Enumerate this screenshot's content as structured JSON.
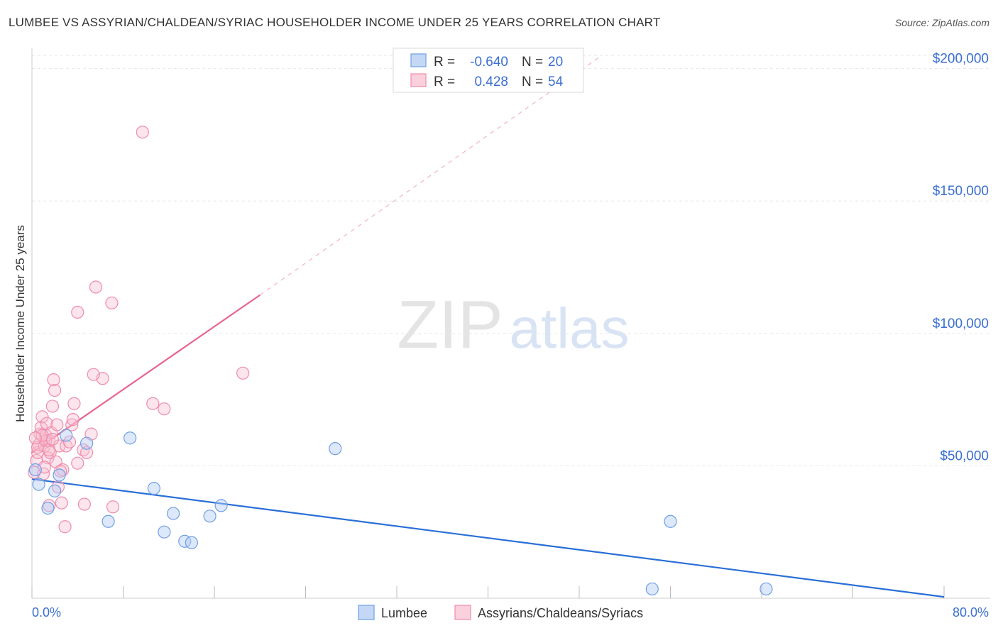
{
  "title": "LUMBEE VS ASSYRIAN/CHALDEAN/SYRIAC HOUSEHOLDER INCOME UNDER 25 YEARS CORRELATION CHART",
  "source": "Source: ZipAtlas.com",
  "watermark": {
    "zip": "ZIP",
    "atlas": "atlas"
  },
  "chart_data": {
    "type": "scatter",
    "title": "LUMBEE VS ASSYRIAN/CHALDEAN/SYRIAC HOUSEHOLDER INCOME UNDER 25 YEARS CORRELATION CHART",
    "xlabel": "",
    "ylabel": "Householder Income Under 25 years",
    "xlim": [
      0,
      80
    ],
    "ylim": [
      0,
      205000
    ],
    "x_tick_labels": [
      "0.0%",
      "80.0%"
    ],
    "y_ticks": [
      50000,
      100000,
      150000,
      200000
    ],
    "y_tick_labels": [
      "$50,000",
      "$100,000",
      "$150,000",
      "$200,000"
    ],
    "grid": true,
    "legend_position": "bottom-center",
    "series": [
      {
        "name": "Lumbee",
        "color": "#6f9fe6",
        "line_color": "#2a6fd6",
        "R": "-0.640",
        "N": "20",
        "trend": {
          "x": [
            0,
            80
          ],
          "y": [
            45000,
            500
          ]
        },
        "points": [
          [
            0.3,
            48500
          ],
          [
            0.6,
            43000
          ],
          [
            1.4,
            34000
          ],
          [
            2.0,
            40500
          ],
          [
            2.4,
            46500
          ],
          [
            3.0,
            61500
          ],
          [
            4.8,
            58500
          ],
          [
            6.7,
            29000
          ],
          [
            8.6,
            60500
          ],
          [
            10.7,
            41500
          ],
          [
            11.6,
            25000
          ],
          [
            12.4,
            32000
          ],
          [
            13.4,
            21500
          ],
          [
            14.0,
            21000
          ],
          [
            15.6,
            31000
          ],
          [
            16.6,
            35000
          ],
          [
            26.6,
            56500
          ],
          [
            56.0,
            29000
          ],
          [
            54.4,
            3500
          ],
          [
            64.4,
            3500
          ]
        ]
      },
      {
        "name": "Assyrians/Chaldeans/Syriacs",
        "color": "#f08cab",
        "line_color": "#e8638f",
        "R": "0.428",
        "N": "54",
        "trend": {
          "x": [
            0,
            20
          ],
          "y": [
            55000,
            114500
          ]
        },
        "trend_extension": {
          "x": [
            20,
            50
          ],
          "y": [
            114500,
            205000
          ]
        },
        "points": [
          [
            0.2,
            47500
          ],
          [
            0.4,
            52000
          ],
          [
            0.5,
            55000
          ],
          [
            0.6,
            58000
          ],
          [
            0.7,
            62000
          ],
          [
            0.8,
            64500
          ],
          [
            0.9,
            68500
          ],
          [
            1.0,
            47000
          ],
          [
            1.1,
            57500
          ],
          [
            1.2,
            61500
          ],
          [
            1.3,
            66000
          ],
          [
            1.4,
            53000
          ],
          [
            1.5,
            59500
          ],
          [
            1.6,
            55000
          ],
          [
            1.7,
            62500
          ],
          [
            1.8,
            72500
          ],
          [
            1.9,
            82500
          ],
          [
            2.0,
            78500
          ],
          [
            2.1,
            51500
          ],
          [
            2.2,
            65500
          ],
          [
            2.3,
            42000
          ],
          [
            2.4,
            57500
          ],
          [
            1.5,
            35000
          ],
          [
            2.9,
            27000
          ],
          [
            2.6,
            36000
          ],
          [
            3.0,
            57500
          ],
          [
            3.3,
            59000
          ],
          [
            3.5,
            65500
          ],
          [
            3.6,
            67500
          ],
          [
            3.7,
            73500
          ],
          [
            4.0,
            51000
          ],
          [
            4.5,
            56000
          ],
          [
            4.8,
            55000
          ],
          [
            5.2,
            62000
          ],
          [
            5.6,
            117500
          ],
          [
            6.2,
            83000
          ],
          [
            7.0,
            111500
          ],
          [
            4.0,
            108000
          ],
          [
            5.4,
            84500
          ],
          [
            7.1,
            34500
          ],
          [
            9.7,
            176000
          ],
          [
            10.6,
            73500
          ],
          [
            11.6,
            71500
          ],
          [
            18.5,
            85000
          ],
          [
            4.6,
            35500
          ],
          [
            0.5,
            57000
          ],
          [
            1.1,
            49500
          ],
          [
            1.2,
            59500
          ],
          [
            0.9,
            61500
          ],
          [
            0.3,
            60500
          ],
          [
            2.7,
            48500
          ],
          [
            1.5,
            56000
          ],
          [
            1.8,
            60000
          ],
          [
            2.5,
            48000
          ]
        ]
      }
    ]
  }
}
